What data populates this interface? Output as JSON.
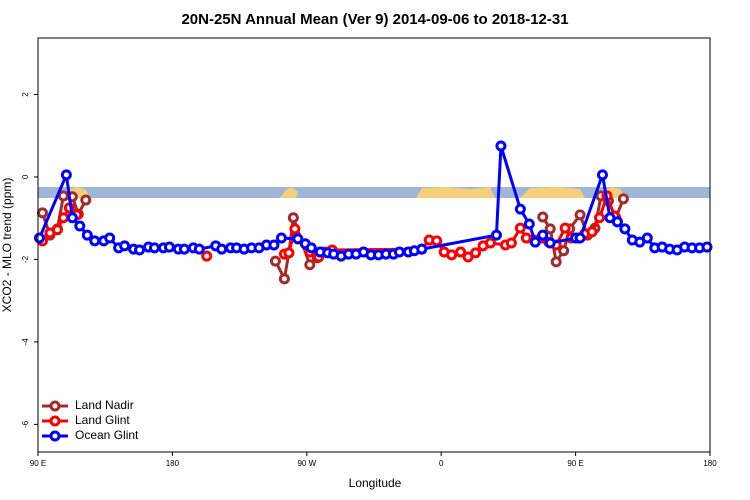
{
  "chart_data": {
    "type": "line",
    "title": "20N-25N Annual Mean (Ver 9)   2014-09-06 to 2018-12-31",
    "x_label": "Longitude",
    "y_label": "XCO2 - MLO trend (ppm)",
    "xlim": [
      90,
      540
    ],
    "ylim": [
      -6.67,
      3.37
    ],
    "xticks": [
      {
        "value": 90,
        "label": "90 E"
      },
      {
        "value": 180,
        "label": "180"
      },
      {
        "value": 270,
        "label": "90 W"
      },
      {
        "value": 360,
        "label": "0"
      },
      {
        "value": 450,
        "label": "90 E"
      },
      {
        "value": 540,
        "label": "180"
      }
    ],
    "yticks": [
      -6,
      -4,
      -2,
      0,
      2
    ],
    "legend": "bottom-left",
    "series": [
      {
        "name": "Land Nadir",
        "color": "#a52a2a",
        "x": [
          93,
          98,
          103,
          107,
          113,
          117,
          122,
          null,
          249,
          255,
          258,
          261,
          272,
          277,
          null,
          428,
          433,
          437,
          442,
          446,
          453,
          458,
          463,
          467,
          472,
          477,
          482
        ],
        "values": [
          -0.87,
          -1.41,
          -1.26,
          -0.46,
          -0.48,
          -0.9,
          -0.56,
          null,
          -2.04,
          -2.47,
          -1.84,
          -0.99,
          -2.13,
          -1.96,
          null,
          -0.97,
          -1.26,
          -2.06,
          -1.79,
          -1.26,
          -0.92,
          -1.41,
          -1.24,
          -0.46,
          -0.58,
          -0.99,
          -0.53
        ]
      },
      {
        "name": "Land Glint",
        "color": "#ff0000",
        "x": [
          93,
          98,
          103,
          107,
          111,
          116,
          null,
          203,
          null,
          255,
          258,
          262,
          272,
          278,
          282,
          287,
          347,
          352,
          357,
          362,
          367,
          373,
          378,
          383,
          388,
          393,
          403,
          407,
          413,
          417,
          422,
          427,
          432,
          437,
          443,
          447,
          452,
          456,
          461,
          466,
          471,
          476
        ],
        "values": [
          -1.55,
          -1.36,
          -1.28,
          -0.99,
          -0.75,
          -0.92,
          null,
          -1.92,
          null,
          -1.87,
          -1.84,
          -1.26,
          -1.82,
          -1.94,
          -1.82,
          -1.77,
          -1.75,
          -1.53,
          -1.55,
          -1.82,
          -1.89,
          -1.82,
          -1.94,
          -1.84,
          -1.67,
          -1.6,
          -1.65,
          -1.6,
          -1.24,
          -1.48,
          -1.53,
          -1.48,
          -1.58,
          -1.65,
          -1.24,
          -1.48,
          -1.48,
          -1.38,
          -1.33,
          -0.99,
          -0.46,
          -0.95
        ]
      },
      {
        "name": "Ocean Glint",
        "color": "#0000ff",
        "x": [
          91,
          109,
          113,
          118,
          123,
          128,
          134,
          138,
          144,
          148,
          154,
          158,
          164,
          168,
          174,
          178,
          184,
          188,
          194,
          198,
          209,
          213,
          219,
          223,
          228,
          233,
          238,
          243,
          248,
          253,
          264,
          269,
          273,
          279,
          284,
          288,
          293,
          298,
          303,
          308,
          313,
          318,
          323,
          328,
          332,
          338,
          342,
          347,
          397,
          400,
          413,
          419,
          423,
          428,
          433,
          450,
          453,
          468,
          473,
          478,
          483,
          488,
          493,
          498,
          503,
          508,
          513,
          518,
          523,
          528,
          533,
          538
        ],
        "values": [
          -1.48,
          0.05,
          -0.99,
          -1.19,
          -1.41,
          -1.55,
          -1.55,
          -1.48,
          -1.72,
          -1.67,
          -1.75,
          -1.77,
          -1.7,
          -1.72,
          -1.72,
          -1.7,
          -1.75,
          -1.75,
          -1.72,
          -1.75,
          -1.67,
          -1.75,
          -1.72,
          -1.72,
          -1.75,
          -1.72,
          -1.72,
          -1.65,
          -1.65,
          -1.48,
          -1.5,
          -1.62,
          -1.72,
          -1.82,
          -1.84,
          -1.87,
          -1.92,
          -1.87,
          -1.87,
          -1.82,
          -1.89,
          -1.89,
          -1.87,
          -1.87,
          -1.82,
          -1.82,
          -1.79,
          -1.75,
          -1.41,
          0.75,
          -0.78,
          -1.14,
          -1.58,
          -1.41,
          -1.6,
          -1.48,
          -1.48,
          0.05,
          -0.99,
          -1.09,
          -1.26,
          -1.53,
          -1.58,
          -1.48,
          -1.72,
          -1.7,
          -1.75,
          -1.77,
          -1.7,
          -1.72,
          -1.72,
          -1.7
        ]
      }
    ]
  }
}
